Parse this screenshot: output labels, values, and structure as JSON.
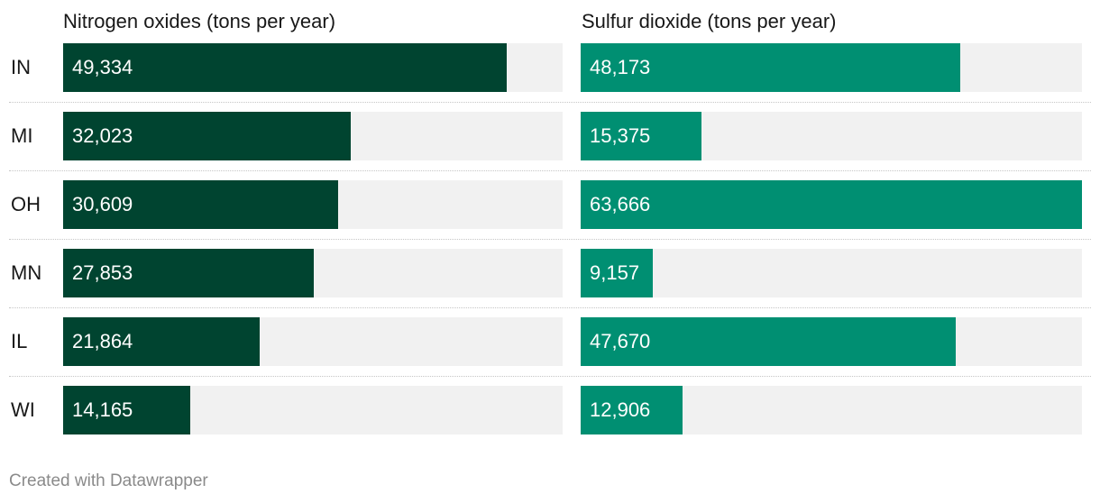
{
  "chart_data": {
    "type": "bar",
    "orientation": "horizontal",
    "categories": [
      "IN",
      "MI",
      "OH",
      "MN",
      "IL",
      "WI"
    ],
    "series": [
      {
        "name": "Nitrogen oxides (tons per year)",
        "values": [
          49334,
          32023,
          30609,
          27853,
          21864,
          14165
        ],
        "labels": [
          "49,334",
          "32,023",
          "30,609",
          "27,853",
          "21,864",
          "14,165"
        ],
        "color": "#004430",
        "xlim": [
          0,
          55600
        ]
      },
      {
        "name": "Sulfur dioxide (tons per year)",
        "values": [
          48173,
          15375,
          63666,
          9157,
          47670,
          12906
        ],
        "labels": [
          "48,173",
          "15,375",
          "63,666",
          "9,157",
          "47,670",
          "12,906"
        ],
        "color": "#008f72",
        "xlim": [
          0,
          63666
        ]
      }
    ],
    "track_color": "#f1f1f1",
    "grid": false,
    "legend": "none"
  },
  "footer": "Created with Datawrapper"
}
